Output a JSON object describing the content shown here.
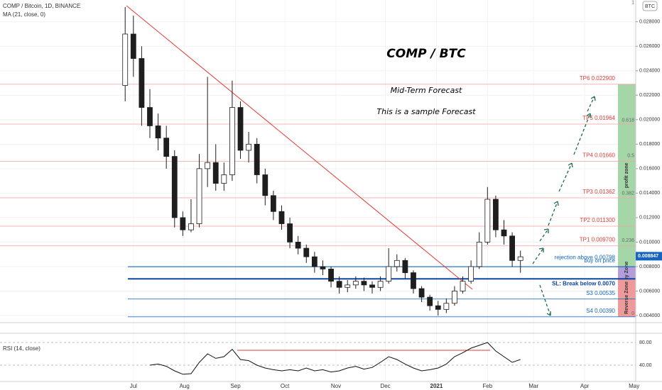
{
  "header": {
    "symbol": "COMP / Bitcoin, 1D, BINANCE",
    "indicator": "MA (21, close, 0)",
    "currency": "BTC"
  },
  "annotations": {
    "title": "COMP / BTC",
    "subtitle": "Mid-Term Forecast",
    "note": "This is a sample Forecast"
  },
  "chart_data": {
    "type": "candlestick",
    "x": [
      -5,
      0,
      5,
      10,
      15,
      20,
      25,
      30,
      35,
      40,
      45,
      50,
      55,
      60,
      65,
      70,
      75,
      80,
      85,
      90,
      95,
      100,
      105,
      110,
      115,
      120,
      125,
      130,
      135,
      140,
      145,
      150,
      155,
      160,
      165,
      170,
      175,
      180,
      185,
      190,
      195,
      200,
      205,
      210,
      215,
      220,
      225,
      230,
      235
    ],
    "open": [
      0.0228,
      0.027,
      0.025,
      0.021,
      0.0195,
      0.0185,
      0.017,
      0.012,
      0.011,
      0.0115,
      0.016,
      0.0165,
      0.0148,
      0.0155,
      0.021,
      0.0175,
      0.018,
      0.0155,
      0.0138,
      0.0125,
      0.0115,
      0.01,
      0.0095,
      0.0088,
      0.008,
      0.0078,
      0.0068,
      0.0063,
      0.0065,
      0.0068,
      0.0065,
      0.0063,
      0.0068,
      0.008,
      0.0085,
      0.0075,
      0.0062,
      0.0055,
      0.0048,
      0.0045,
      0.005,
      0.006,
      0.0068,
      0.008,
      0.01,
      0.0135,
      0.011,
      0.0105,
      0.0085
    ],
    "high": [
      0.0292,
      0.0285,
      0.026,
      0.0225,
      0.0205,
      0.0195,
      0.0175,
      0.0125,
      0.0135,
      0.0172,
      0.0235,
      0.018,
      0.0165,
      0.0232,
      0.0215,
      0.019,
      0.0185,
      0.016,
      0.0142,
      0.013,
      0.012,
      0.0105,
      0.0098,
      0.0092,
      0.0085,
      0.008,
      0.0072,
      0.0069,
      0.0072,
      0.0071,
      0.0068,
      0.0072,
      0.0095,
      0.009,
      0.0087,
      0.0077,
      0.0064,
      0.0057,
      0.0052,
      0.0054,
      0.0064,
      0.0072,
      0.0085,
      0.0108,
      0.0145,
      0.0138,
      0.0118,
      0.0108,
      0.0093
    ],
    "low": [
      0.0215,
      0.0235,
      0.0195,
      0.0185,
      0.0175,
      0.016,
      0.0112,
      0.0105,
      0.0108,
      0.0112,
      0.0145,
      0.0142,
      0.0142,
      0.015,
      0.0168,
      0.0165,
      0.0148,
      0.013,
      0.0118,
      0.011,
      0.0095,
      0.009,
      0.0083,
      0.0075,
      0.0073,
      0.0063,
      0.0058,
      0.0059,
      0.0062,
      0.006,
      0.0058,
      0.006,
      0.0066,
      0.0076,
      0.007,
      0.0058,
      0.0051,
      0.0044,
      0.004,
      0.0042,
      0.0048,
      0.0058,
      0.0066,
      0.0078,
      0.0098,
      0.0104,
      0.0098,
      0.008,
      0.0075
    ],
    "close": [
      0.027,
      0.025,
      0.021,
      0.0195,
      0.0185,
      0.017,
      0.012,
      0.011,
      0.0115,
      0.016,
      0.0165,
      0.0148,
      0.0155,
      0.021,
      0.0175,
      0.018,
      0.0155,
      0.0138,
      0.0125,
      0.0115,
      0.01,
      0.0095,
      0.0088,
      0.008,
      0.0078,
      0.0068,
      0.0063,
      0.0065,
      0.0068,
      0.0065,
      0.0063,
      0.0068,
      0.008,
      0.0085,
      0.0075,
      0.0062,
      0.0055,
      0.0048,
      0.0045,
      0.005,
      0.006,
      0.0068,
      0.008,
      0.01,
      0.0135,
      0.011,
      0.0105,
      0.0085,
      0.0088
    ],
    "up_color": "#ffffff",
    "down_color": "#1e1e1e",
    "xlim": [
      -81,
      305
    ],
    "xticks": [
      {
        "value": 0,
        "label": "Jul"
      },
      {
        "value": 31,
        "label": "Aug"
      },
      {
        "value": 62,
        "label": "Sep"
      },
      {
        "value": 92,
        "label": "Oct"
      },
      {
        "value": 123,
        "label": "Nov"
      },
      {
        "value": 153,
        "label": "Dec"
      },
      {
        "value": 184,
        "label": "2021"
      },
      {
        "value": 215,
        "label": "Feb"
      },
      {
        "value": 243,
        "label": "Mar"
      },
      {
        "value": 274,
        "label": "Apr"
      },
      {
        "value": 304,
        "label": "May"
      }
    ],
    "ylim": [
      0.00342,
      0.02978
    ],
    "yticks": [
      {
        "value": 0.004,
        "label": "0.004000"
      },
      {
        "value": 0.006,
        "label": "0.006000"
      },
      {
        "value": 0.008,
        "label": "0.008000"
      },
      {
        "value": 0.01,
        "label": "0.010000"
      },
      {
        "value": 0.012,
        "label": "0.012000"
      },
      {
        "value": 0.014,
        "label": "0.014000"
      },
      {
        "value": 0.016,
        "label": "0.016000"
      },
      {
        "value": 0.018,
        "label": "0.018000"
      },
      {
        "value": 0.02,
        "label": "0.020000"
      },
      {
        "value": 0.022,
        "label": "0.022000"
      },
      {
        "value": 0.024,
        "label": "0.024000"
      },
      {
        "value": 0.026,
        "label": "0.026000"
      },
      {
        "value": 0.028,
        "label": "0.028000"
      }
    ],
    "last_price": 0.008847,
    "levels": [
      {
        "label": "TP6 0.022900",
        "value": 0.0229,
        "color": "#e53935"
      },
      {
        "label": "TP5 0.01964",
        "value": 0.01964,
        "color": "#e53935"
      },
      {
        "label": "TP4 0.01660",
        "value": 0.0166,
        "color": "#e53935"
      },
      {
        "label": "TP3 0.01362",
        "value": 0.01362,
        "color": "#e53935"
      },
      {
        "label": "TP2 0.011300",
        "value": 0.0113,
        "color": "#e53935"
      },
      {
        "label": "TP1 0.009700",
        "value": 0.0097,
        "color": "#e53935"
      },
      {
        "label": "buy on price",
        "value": 0.008,
        "color": "#1565c0"
      },
      {
        "label": "rejection above 0.00798",
        "value": 0.00798,
        "color": "#1565c0"
      },
      {
        "label": "SL: Break below 0.0070",
        "value": 0.007,
        "color": "#0d47a1"
      },
      {
        "label": "S3 0.00535",
        "value": 0.00535,
        "color": "#1565c0"
      },
      {
        "label": "S4 0.00390",
        "value": 0.0039,
        "color": "#1565c0"
      }
    ],
    "zones": [
      {
        "label": "profit zone",
        "from": 0.008,
        "to": 0.0229,
        "color": "#a5d6a7"
      },
      {
        "label": "Buy Zone",
        "from": 0.007,
        "to": 0.008,
        "color": "#b39ddb"
      },
      {
        "label": "Reverse Zone",
        "from": 0.0039,
        "to": 0.007,
        "color": "#ef9a9a"
      }
    ],
    "fib": {
      "levels": [
        1,
        0.618,
        0.5,
        0.382,
        0.236,
        0
      ],
      "prices": [
        0.02957,
        0.01994,
        0.01704,
        0.01397,
        0.01014,
        0.00417
      ]
    },
    "rsi": {
      "name": "RSI (14, close)",
      "x": [
        10,
        15,
        20,
        25,
        30,
        35,
        40,
        45,
        50,
        55,
        60,
        65,
        70,
        75,
        80,
        85,
        90,
        95,
        100,
        105,
        110,
        115,
        120,
        125,
        130,
        135,
        140,
        145,
        150,
        155,
        160,
        165,
        170,
        175,
        180,
        185,
        190,
        195,
        200,
        205,
        210,
        215,
        220,
        225,
        230,
        235
      ],
      "values": [
        40,
        42,
        38,
        30,
        24,
        25,
        45,
        60,
        52,
        55,
        68,
        50,
        48,
        40,
        35,
        32,
        30,
        32,
        30,
        35,
        30,
        32,
        28,
        30,
        35,
        38,
        33,
        36,
        45,
        55,
        50,
        42,
        35,
        30,
        32,
        35,
        42,
        55,
        62,
        70,
        75,
        80,
        65,
        55,
        45,
        50
      ],
      "color": "#111111",
      "ylim": [
        8.75,
        96.25
      ],
      "yticks": [
        {
          "value": 40,
          "label": "40.00"
        },
        {
          "value": 80,
          "label": "80.00"
        }
      ]
    }
  }
}
